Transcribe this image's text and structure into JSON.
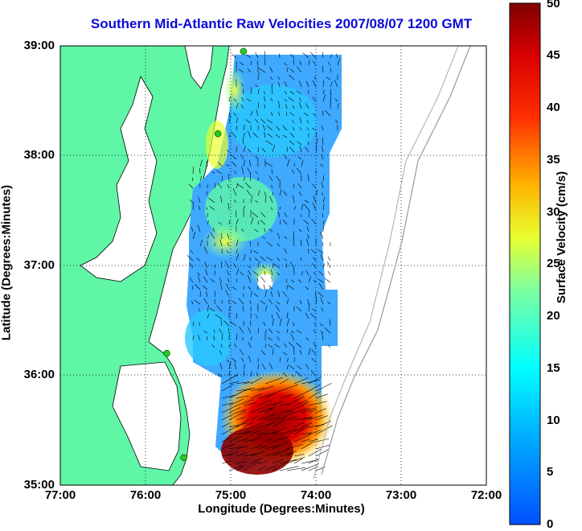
{
  "title": "Southern Mid-Atlantic Raw Velocities 2007/08/07 1200 GMT",
  "xlabel": "Longitude (Degrees:Minutes)",
  "ylabel": "Latitude (Degrees:Minutes)",
  "x_ticks": [
    "77:00",
    "76:00",
    "75:00",
    "74:00",
    "73:00",
    "72:00"
  ],
  "y_ticks": [
    "39:00",
    "38:00",
    "37:00",
    "36:00",
    "35:00"
  ],
  "colorbar": {
    "label": "Surface Velocity (cm/s)",
    "ticks": [
      "50",
      "45",
      "40",
      "35",
      "30",
      "25",
      "20",
      "15",
      "10",
      "5",
      "0"
    ],
    "range": [
      0,
      50
    ]
  },
  "colors": {
    "land": "#5ff6a6",
    "title": "#0a0ad8",
    "station": "#22cc22"
  },
  "stations_lonlat": [
    [
      -74.85,
      38.95
    ],
    [
      -75.15,
      38.2
    ],
    [
      -75.75,
      36.2
    ],
    [
      -75.55,
      35.25
    ]
  ]
}
